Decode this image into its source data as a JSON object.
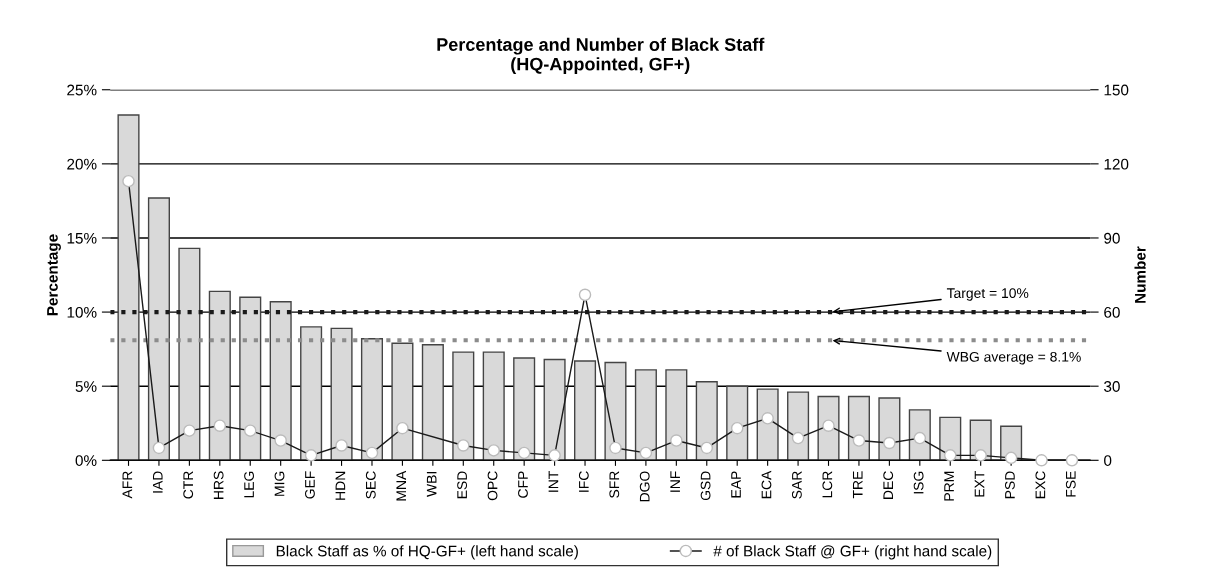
{
  "chart_data": {
    "type": "bar",
    "title": "Percentage and Number of Black Staff\n(HQ-Appointed, GF+)",
    "ylabel": "Percentage",
    "y2label": "Number",
    "categories": [
      "AFR",
      "IAD",
      "CTR",
      "HRS",
      "LEG",
      "MIG",
      "GEF",
      "HDN",
      "SEC",
      "MNA",
      "WBI",
      "ESD",
      "OPC",
      "CFP",
      "INT",
      "IFC",
      "SFR",
      "DGO",
      "INF",
      "GSD",
      "EAP",
      "ECA",
      "SAR",
      "LCR",
      "TRE",
      "DEC",
      "ISG",
      "PRM",
      "EXT",
      "PSD",
      "EXC",
      "FSE"
    ],
    "series": [
      {
        "name": "Black Staff as % of HQ-GF+ (left hand scale)",
        "color": "#d9d9d9",
        "values": [
          23.3,
          17.7,
          14.3,
          11.4,
          11.0,
          10.7,
          9.0,
          8.9,
          8.2,
          7.9,
          7.8,
          7.3,
          7.3,
          6.9,
          6.8,
          6.7,
          6.6,
          6.1,
          6.1,
          5.3,
          5.0,
          4.8,
          4.6,
          4.3,
          4.3,
          4.2,
          3.4,
          2.9,
          2.7,
          2.3,
          0,
          0
        ]
      },
      {
        "name": "# of Black Staff @ GF+ (right hand scale)",
        "type": "line",
        "axis": "y2",
        "color": "#1a1a1a",
        "marker": "circle",
        "values": [
          113,
          5,
          12,
          14,
          12,
          8,
          2,
          6,
          3,
          13,
          null,
          6,
          4,
          3,
          2,
          67,
          5,
          3,
          8,
          5,
          13,
          17,
          9,
          14,
          8,
          7,
          9,
          2,
          2,
          1,
          0,
          0
        ]
      }
    ],
    "ylim": [
      0,
      25
    ],
    "yticks": [
      {
        "value": 0,
        "label": "0%"
      },
      {
        "value": 5,
        "label": "5%"
      },
      {
        "value": 10,
        "label": "10%"
      },
      {
        "value": 15,
        "label": "15%"
      },
      {
        "value": 20,
        "label": "20%"
      },
      {
        "value": 25,
        "label": "25%"
      }
    ],
    "y2lim": [
      0,
      150
    ],
    "y2ticks": [
      0,
      30,
      60,
      90,
      120,
      150
    ],
    "ref_lines": [
      {
        "axis": "y",
        "value": 10,
        "label": "Target = 10%",
        "color": "#1a1a1a",
        "line_style": "dotted"
      },
      {
        "axis": "y",
        "value": 8.1,
        "label": "WBG average = 8.1%",
        "color": "#8c8c8c",
        "line_style": "dotted"
      }
    ],
    "grid": "y",
    "legend": "bottom"
  }
}
